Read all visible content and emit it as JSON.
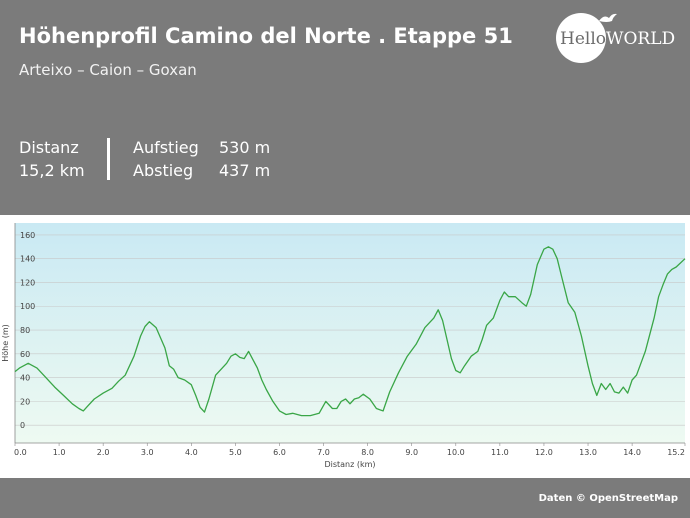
{
  "header": {
    "title": "Höhenprofil Camino del Norte . Etappe 51",
    "subtitle": "Arteixo – Caion – Goxan"
  },
  "stats": {
    "distance_label": "Distanz",
    "distance_value": "15,2 km",
    "ascent_label": "Aufstieg",
    "ascent_value": "530 m",
    "descent_label": "Abstieg",
    "descent_value": "437 m"
  },
  "logo": {
    "hello": "Hello",
    "world": "WORLD"
  },
  "footer": {
    "credit": "Daten © OpenStreetMap"
  },
  "colors": {
    "line": "#3aa647",
    "fill_top": "#c9e9f3",
    "fill_bottom": "#eefaf2",
    "grid": "#c8c8c8"
  },
  "chart_data": {
    "type": "area",
    "title": "",
    "xlabel": "Distanz  (km)",
    "ylabel": "Höhe (m)",
    "xlim": [
      0,
      15.2
    ],
    "ylim": [
      -15,
      170
    ],
    "x_ticks": [
      0.0,
      1.0,
      2.0,
      3.0,
      4.0,
      5.0,
      6.0,
      7.0,
      8.0,
      9.0,
      10.0,
      11.0,
      12.0,
      13.0,
      14.0,
      15.2
    ],
    "x_tick_labels": [
      "0.0",
      "1.0",
      "2.0",
      "3.0",
      "4.0",
      "5.0",
      "6.0",
      "7.0",
      "8.0",
      "9.0",
      "10.0",
      "11.0",
      "12.0",
      "13.0",
      "14.0",
      "15.2"
    ],
    "y_ticks": [
      0,
      20,
      40,
      60,
      80,
      100,
      120,
      140,
      160
    ],
    "y_tick_labels": [
      "0",
      "20",
      "40",
      "60",
      "80",
      "100",
      "120",
      "140",
      "160"
    ],
    "grid": true,
    "series": [
      {
        "x": [
          0,
          0.1,
          0.3,
          0.5,
          0.7,
          0.9,
          1.1,
          1.3,
          1.45,
          1.55,
          1.65,
          1.8,
          2.0,
          2.2,
          2.35,
          2.5,
          2.7,
          2.85,
          2.95,
          3.05,
          3.2,
          3.4,
          3.5,
          3.6,
          3.7,
          3.85,
          4.0,
          4.1,
          4.2,
          4.3,
          4.4,
          4.55,
          4.7,
          4.8,
          4.9,
          5.0,
          5.1,
          5.2,
          5.3,
          5.4,
          5.5,
          5.6,
          5.7,
          5.85,
          6.0,
          6.15,
          6.3,
          6.5,
          6.7,
          6.9,
          7.05,
          7.2,
          7.3,
          7.4,
          7.5,
          7.6,
          7.7,
          7.8,
          7.9,
          8.05,
          8.2,
          8.35,
          8.5,
          8.7,
          8.9,
          9.1,
          9.3,
          9.5,
          9.6,
          9.7,
          9.8,
          9.9,
          10.0,
          10.1,
          10.2,
          10.35,
          10.5,
          10.6,
          10.7,
          10.85,
          11.0,
          11.1,
          11.2,
          11.35,
          11.5,
          11.6,
          11.7,
          11.85,
          12.0,
          12.1,
          12.2,
          12.3,
          12.4,
          12.55,
          12.7,
          12.85,
          13.0,
          13.1,
          13.2,
          13.3,
          13.4,
          13.5,
          13.6,
          13.7,
          13.8,
          13.9,
          14.0,
          14.1,
          14.2,
          14.3,
          14.5,
          14.6,
          14.7,
          14.8,
          14.9,
          15.0,
          15.2
        ],
        "y": [
          45,
          48,
          52,
          48,
          40,
          32,
          25,
          18,
          14,
          12,
          16,
          22,
          27,
          31,
          37,
          42,
          58,
          75,
          83,
          87,
          82,
          65,
          50,
          47,
          40,
          38,
          34,
          25,
          15,
          11,
          22,
          42,
          48,
          52,
          58,
          60,
          57,
          56,
          62,
          55,
          48,
          38,
          30,
          20,
          12,
          9,
          10,
          8,
          8,
          10,
          20,
          14,
          14,
          20,
          22,
          18,
          22,
          23,
          26,
          22,
          14,
          12,
          28,
          44,
          58,
          68,
          82,
          90,
          97,
          88,
          72,
          56,
          46,
          44,
          50,
          58,
          62,
          72,
          84,
          90,
          105,
          112,
          108,
          108,
          103,
          100,
          110,
          135,
          148,
          150,
          148,
          140,
          125,
          103,
          95,
          75,
          50,
          35,
          25,
          35,
          30,
          35,
          28,
          27,
          32,
          27,
          38,
          42,
          52,
          62,
          90,
          108,
          118,
          127,
          131,
          133,
          140
        ]
      }
    ]
  }
}
